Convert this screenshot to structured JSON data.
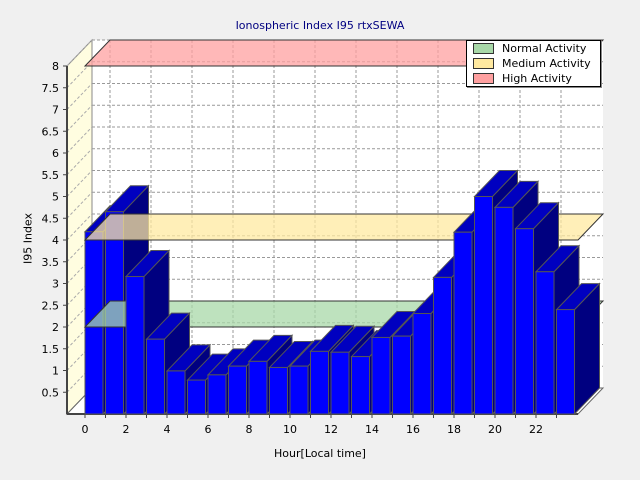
{
  "chart_data": {
    "type": "bar",
    "title": "Ionospheric Index I95 rtxSEWA",
    "xlabel": "Hour[Local time]",
    "ylabel": "I95 Index",
    "ylim": [
      0,
      8
    ],
    "yticks": [
      "0.5",
      "1",
      "1.5",
      "2",
      "2.5",
      "3",
      "3.5",
      "4",
      "4.5",
      "5",
      "5.5",
      "6",
      "6.5",
      "7",
      "7.5",
      "8"
    ],
    "xticks": [
      "0",
      "2",
      "4",
      "6",
      "8",
      "10",
      "12",
      "14",
      "16",
      "18",
      "20",
      "22"
    ],
    "x": [
      0,
      1,
      2,
      3,
      4,
      5,
      6,
      7,
      8,
      9,
      10,
      11,
      12,
      13,
      14,
      15,
      16,
      17,
      18,
      19,
      20,
      21,
      22,
      23
    ],
    "values": [
      4.19,
      4.65,
      3.16,
      1.72,
      0.99,
      0.78,
      0.9,
      1.1,
      1.21,
      1.07,
      1.1,
      1.44,
      1.42,
      1.32,
      1.76,
      1.79,
      2.31,
      3.14,
      4.18,
      5.0,
      4.75,
      4.26,
      3.27,
      2.4
    ],
    "bar_color": "#0000ff",
    "grid": true,
    "legend_position": "top-right",
    "thresholds": [
      {
        "name": "Normal Activity",
        "value": 2,
        "color": "#a8d8a8"
      },
      {
        "name": "Medium Activity",
        "value": 4,
        "color": "#ffe9a0"
      },
      {
        "name": "High Activity",
        "value": 8,
        "color": "#ffa0a0"
      }
    ]
  }
}
